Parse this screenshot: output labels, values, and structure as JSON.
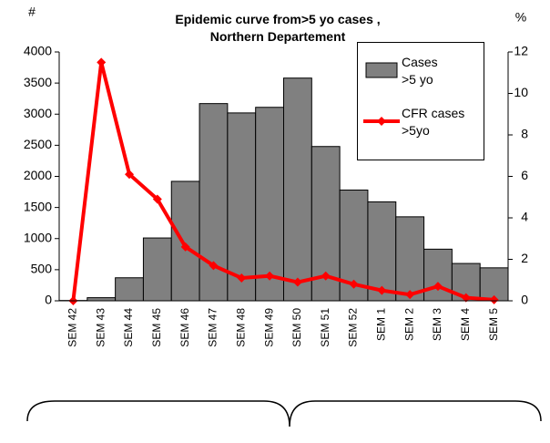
{
  "chart_data": {
    "type": "bar",
    "title": [
      "Epidemic curve from>5 yo cases ,",
      "Northern Departement"
    ],
    "ylabel": "#",
    "y2label": "%",
    "categories": [
      "SEM 42",
      "SEM 43",
      "SEM 44",
      "SEM 45",
      "SEM 46",
      "SEM 47",
      "SEM 48",
      "SEM 49",
      "SEM 50",
      "SEM 51",
      "SEM 52",
      "SEM 1",
      "SEM 2",
      "SEM 3",
      "SEM 4",
      "SEM 5"
    ],
    "series": [
      {
        "name": "Cases >5 yo",
        "type": "bar",
        "color": "#808080",
        "values": [
          5,
          50,
          370,
          1010,
          1920,
          3170,
          3020,
          3110,
          3580,
          2480,
          1780,
          1590,
          1350,
          830,
          600,
          530
        ]
      },
      {
        "name": "CFR cases >5yo",
        "type": "line",
        "axis": "y2",
        "color": "#ff0000",
        "values": [
          0,
          11.5,
          6.1,
          4.9,
          2.6,
          1.7,
          1.1,
          1.2,
          0.9,
          1.2,
          0.8,
          0.5,
          0.3,
          0.7,
          0.15,
          0.05
        ]
      }
    ],
    "ylim": [
      0,
      4000
    ],
    "yticks": [
      0,
      500,
      1000,
      1500,
      2000,
      2500,
      3000,
      3500,
      4000
    ],
    "y2lim": [
      0,
      12
    ],
    "y2ticks": [
      0,
      2,
      4,
      6,
      8,
      10,
      12
    ]
  }
}
